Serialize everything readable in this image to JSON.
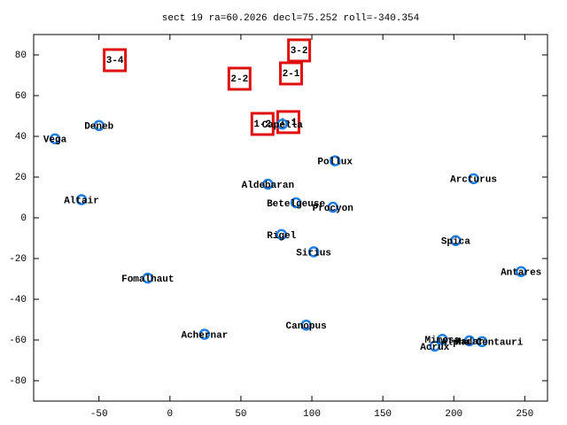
{
  "chart_data": {
    "type": "scatter",
    "title": "sect 19 ra=60.2026 decl=75.252 roll=-340.354",
    "xlim": [
      -96,
      266
    ],
    "ylim": [
      -90,
      90
    ],
    "xticks": [
      -50,
      0,
      50,
      100,
      150,
      200,
      250
    ],
    "yticks": [
      -80,
      -60,
      -40,
      -20,
      0,
      20,
      40,
      60,
      80
    ],
    "point_color": "#1e7fe0",
    "box_color": "#e01010",
    "points": [
      {
        "label": "Vega",
        "x": -81,
        "y": 38.8
      },
      {
        "label": "Deneb",
        "x": -50,
        "y": 45.3
      },
      {
        "label": "Altair",
        "x": -62.3,
        "y": 8.9
      },
      {
        "label": "Fomalhaut",
        "x": -15.6,
        "y": -29.6
      },
      {
        "label": "Achernar",
        "x": 24.4,
        "y": -57.2
      },
      {
        "label": "Aldebaran",
        "x": 69,
        "y": 16.5
      },
      {
        "label": "Capella",
        "x": 79.2,
        "y": 46
      },
      {
        "label": "Betelgeuse",
        "x": 88.8,
        "y": 7.4
      },
      {
        "label": "Rigel",
        "x": 78.6,
        "y": -8.2
      },
      {
        "label": "Sirius",
        "x": 101.3,
        "y": -16.7
      },
      {
        "label": "Procyon",
        "x": 114.8,
        "y": 5.2
      },
      {
        "label": "Pollux",
        "x": 116.3,
        "y": 28
      },
      {
        "label": "Canopus",
        "x": 96,
        "y": -52.7
      },
      {
        "label": "Arcturus",
        "x": 213.9,
        "y": 19.2
      },
      {
        "label": "Spica",
        "x": 201.3,
        "y": -11.2
      },
      {
        "label": "Antares",
        "x": 247.4,
        "y": -26.4
      },
      {
        "label": "Acrux",
        "x": 186.6,
        "y": -63
      },
      {
        "label": "Mimosa",
        "x": 191.9,
        "y": -59.7
      },
      {
        "label": "Hadar",
        "x": 211,
        "y": -60.4
      },
      {
        "label": "Alpha Centauri",
        "x": 219.9,
        "y": -60.8
      }
    ],
    "boxes": [
      {
        "label": "3-4",
        "x": -38.8,
        "y": 77.4
      },
      {
        "label": "3-2",
        "x": 91,
        "y": 82.2
      },
      {
        "label": "2-2",
        "x": 49,
        "y": 68.3
      },
      {
        "label": "2-1",
        "x": 85.3,
        "y": 70.9
      },
      {
        "label": "1-2",
        "x": 65.2,
        "y": 46.1
      },
      {
        "label": "1-1",
        "x": 83.4,
        "y": 47
      }
    ]
  }
}
